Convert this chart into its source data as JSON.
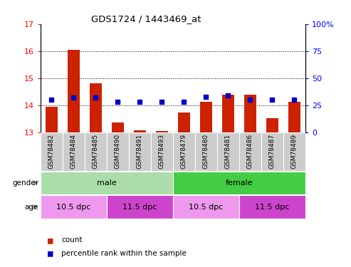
{
  "title": "GDS1724 / 1443469_at",
  "samples": [
    "GSM78482",
    "GSM78484",
    "GSM78485",
    "GSM78490",
    "GSM78491",
    "GSM78493",
    "GSM78479",
    "GSM78480",
    "GSM78481",
    "GSM78486",
    "GSM78487",
    "GSM78489"
  ],
  "bar_values": [
    13.93,
    16.05,
    14.82,
    13.35,
    13.07,
    13.05,
    13.72,
    14.12,
    14.38,
    14.38,
    13.53,
    14.12
  ],
  "percentile_values": [
    30,
    32,
    32,
    28,
    28,
    28,
    28,
    33,
    34,
    30,
    30,
    30
  ],
  "bar_base": 13.0,
  "ylim_left": [
    13,
    17
  ],
  "ylim_right": [
    0,
    100
  ],
  "yticks_left": [
    13,
    14,
    15,
    16,
    17
  ],
  "yticks_right": [
    0,
    25,
    50,
    75,
    100
  ],
  "bar_color": "#cc2200",
  "dot_color": "#0000cc",
  "xtick_bg": "#cccccc",
  "gender_male_color": "#aaddaa",
  "gender_female_color": "#44cc44",
  "age_light_color": "#ee99ee",
  "age_dark_color": "#cc44cc",
  "gender_labels": [
    {
      "label": "male",
      "start": 0,
      "end": 6
    },
    {
      "label": "female",
      "start": 6,
      "end": 12
    }
  ],
  "age_groups": [
    {
      "label": "10.5 dpc",
      "start": 0,
      "end": 3,
      "dark": false
    },
    {
      "label": "11.5 dpc",
      "start": 3,
      "end": 6,
      "dark": true
    },
    {
      "label": "10.5 dpc",
      "start": 6,
      "end": 9,
      "dark": false
    },
    {
      "label": "11.5 dpc",
      "start": 9,
      "end": 12,
      "dark": true
    }
  ]
}
